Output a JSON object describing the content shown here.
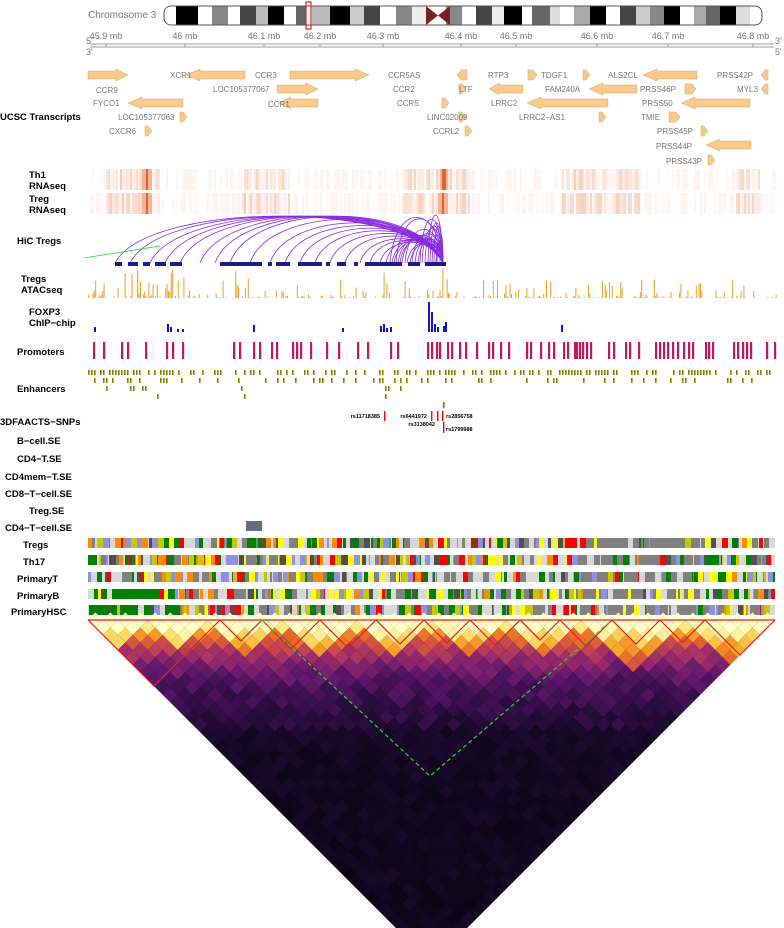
{
  "ideogram": {
    "label": "Chromosome 3"
  },
  "axis": {
    "ticks": [
      "45.9 mb",
      "46 mb",
      "46.1 mb",
      "46.2 mb",
      "46.3 mb",
      "46.4 mb",
      "46.5 mb",
      "46.6 mb",
      "46.7 mb",
      "46.8 mb"
    ],
    "left_top": "5'",
    "left_bottom": "3'",
    "right_top": "3'",
    "right_bottom": "5'"
  },
  "tracks": {
    "transcripts": "UCSC Transcripts",
    "th1": "Th1\nRNAseq",
    "treg_rna": "Treg\nRNAseq",
    "hic": "HiC Tregs",
    "atac": "Tregs\nATACseq",
    "foxp3": "FOXP3\nChIP−chip",
    "promoters": "Promoters",
    "enhancers": "Enhancers",
    "snps": "3DFAACTS−SNPs",
    "se_b": "B−cell.SE",
    "se_cd4t": "CD4−T.SE",
    "se_cd4mem": "CD4mem−T.SE",
    "se_cd8": "CD8−T−cell.SE",
    "se_treg": "Treg.SE",
    "se_cd4cell": "CD4−T−cell.SE",
    "cs_tregs": "Tregs",
    "cs_th17": "Th17",
    "cs_primaryt": "PrimaryT",
    "cs_primaryb": "PrimaryB",
    "cs_primaryhsc": "PrimaryHSC"
  },
  "genes": [
    {
      "name": "XCR1",
      "dir": "left",
      "row": 0
    },
    {
      "name": "CCR3",
      "dir": "right",
      "row": 0
    },
    {
      "name": "CCR5AS",
      "dir": "left",
      "row": 0
    },
    {
      "name": "RTP3",
      "dir": "right",
      "row": 0
    },
    {
      "name": "TDGF1",
      "dir": "right",
      "row": 0
    },
    {
      "name": "ALS2CL",
      "dir": "left",
      "row": 0
    },
    {
      "name": "PRSS42P",
      "dir": "left",
      "row": 0
    },
    {
      "name": "CCR9",
      "dir": "right",
      "row": 1
    },
    {
      "name": "LOC105377067",
      "dir": "right",
      "row": 1
    },
    {
      "name": "CCR2",
      "dir": "right",
      "row": 1
    },
    {
      "name": "LTF",
      "dir": "left",
      "row": 1
    },
    {
      "name": "FAM240A",
      "dir": "left",
      "row": 1
    },
    {
      "name": "PRSS46P",
      "dir": "right",
      "row": 1
    },
    {
      "name": "MYL3",
      "dir": "left",
      "row": 1
    },
    {
      "name": "FYCO1",
      "dir": "left",
      "row": 2
    },
    {
      "name": "CCR1",
      "dir": "left",
      "row": 2
    },
    {
      "name": "CCR5",
      "dir": "right",
      "row": 2
    },
    {
      "name": "LRRC2",
      "dir": "left",
      "row": 2
    },
    {
      "name": "PRSS50",
      "dir": "left",
      "row": 2
    },
    {
      "name": "LOC105377063",
      "dir": "right",
      "row": 3
    },
    {
      "name": "LINC02009",
      "dir": "right",
      "row": 3
    },
    {
      "name": "LRRC2−AS1",
      "dir": "right",
      "row": 3
    },
    {
      "name": "TMIE",
      "dir": "right",
      "row": 3
    },
    {
      "name": "CXCR6",
      "dir": "right",
      "row": 4
    },
    {
      "name": "CCRL2",
      "dir": "right",
      "row": 4
    },
    {
      "name": "PRSS45P",
      "dir": "right",
      "row": 4
    },
    {
      "name": "PRSS44P",
      "dir": "left",
      "row": 5
    },
    {
      "name": "PRSS43P",
      "dir": "right",
      "row": 6
    }
  ],
  "snps": [
    {
      "id": "rs11718385"
    },
    {
      "id": "rs6441972"
    },
    {
      "id": "rs3138042"
    },
    {
      "id": "rs2856758"
    },
    {
      "id": "rs1799988"
    }
  ],
  "colors": {
    "gene": "#f8c98c",
    "gene_stroke": "#d9a45c",
    "rna": "#e8581d",
    "arc": "#8a2be2",
    "atac": "#f0a020",
    "foxp3": "#1010e0",
    "promoter": "#c2185b",
    "enhancer": "#808000",
    "snp": "#ff0000",
    "se": "#607080",
    "tad": "#e02020",
    "tad_green": "#20e020"
  }
}
